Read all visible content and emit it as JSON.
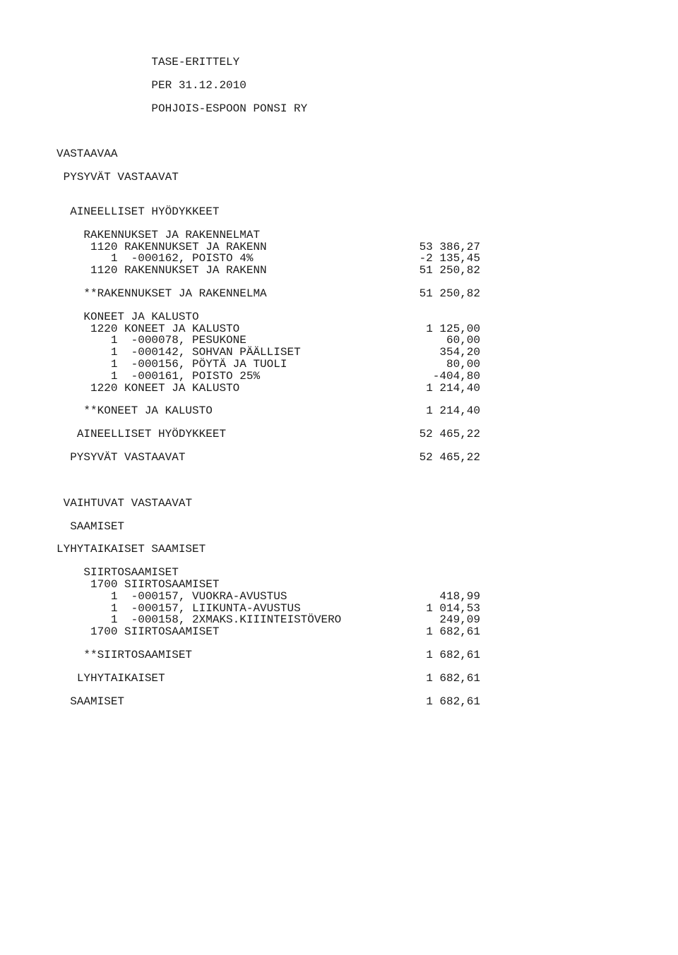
{
  "header": {
    "title": "TASE-ERITTELY",
    "date": "PER 31.12.2010",
    "org": "POHJOIS-ESPOON PONSI RY"
  },
  "section1": {
    "title": "VASTAAVAA"
  },
  "section2": {
    "title": "PYSYVÄT VASTAAVAT"
  },
  "section3": {
    "title": "AINEELLISET HYÖDYKKEET",
    "sub1": {
      "title": "RAKENNUKSET JA RAKENNELMAT",
      "line1": {
        "label": "1120 RAKENNUKSET JA RAKENN",
        "amount": "53 386,27"
      },
      "line2": {
        "label": "   1  -000162, POISTO 4%",
        "amount": "-2 135,45"
      },
      "line3": {
        "label": "1120 RAKENNUKSET JA RAKENN",
        "amount": "51 250,82"
      },
      "total": {
        "label": "**RAKENNUKSET JA RAKENNELMA",
        "amount": "51 250,82"
      }
    },
    "sub2": {
      "title": "KONEET JA KALUSTO",
      "line1": {
        "label": "1220 KONEET JA KALUSTO",
        "amount": "1 125,00"
      },
      "line2": {
        "label": "   1  -000078, PESUKONE",
        "amount": "60,00"
      },
      "line3": {
        "label": "   1  -000142, SOHVAN PÄÄLLISET",
        "amount": "354,20"
      },
      "line4": {
        "label": "   1  -000156, PÖYTÄ JA TUOLI",
        "amount": "80,00"
      },
      "line5": {
        "label": "   1  -000161, POISTO 25%",
        "amount": "-404,80"
      },
      "line6": {
        "label": "1220 KONEET JA KALUSTO",
        "amount": "1 214,40"
      },
      "total": {
        "label": "**KONEET JA KALUSTO",
        "amount": "1 214,40"
      }
    },
    "total": {
      "label": "AINEELLISET HYÖDYKKEET",
      "amount": "52 465,22"
    }
  },
  "section2total": {
    "label": "PYSYVÄT VASTAAVAT",
    "amount": "52 465,22"
  },
  "section4": {
    "title": "VAIHTUVAT VASTAAVAT"
  },
  "section5": {
    "title": "SAAMISET",
    "sub1": {
      "title": "LYHYTAIKAISET SAAMISET",
      "group": {
        "title": "SIIRTOSAAMISET",
        "line0": {
          "label": "1700 SIIRTOSAAMISET",
          "amount": ""
        },
        "line1": {
          "label": "   1  -000157, VUOKRA-AVUSTUS",
          "amount": "418,99"
        },
        "line2": {
          "label": "   1  -000157, LIIKUNTA-AVUSTUS",
          "amount": "1 014,53"
        },
        "line3": {
          "label": "   1  -000158, 2XMAKS.KIIINTEISTÖVERO",
          "amount": "249,09"
        },
        "line4": {
          "label": "1700 SIIRTOSAAMISET",
          "amount": "1 682,61"
        },
        "total": {
          "label": "**SIIRTOSAAMISET",
          "amount": "1 682,61"
        }
      },
      "total": {
        "label": "LYHYTAIKAISET",
        "amount": "1 682,61"
      }
    },
    "total": {
      "label": "SAAMISET",
      "amount": "1 682,61"
    }
  },
  "indent": {
    "i0": "",
    "i1": " ",
    "i2": "  ",
    "i3": "   ",
    "i4": "    ",
    "i5": "     ",
    "header": "              "
  }
}
